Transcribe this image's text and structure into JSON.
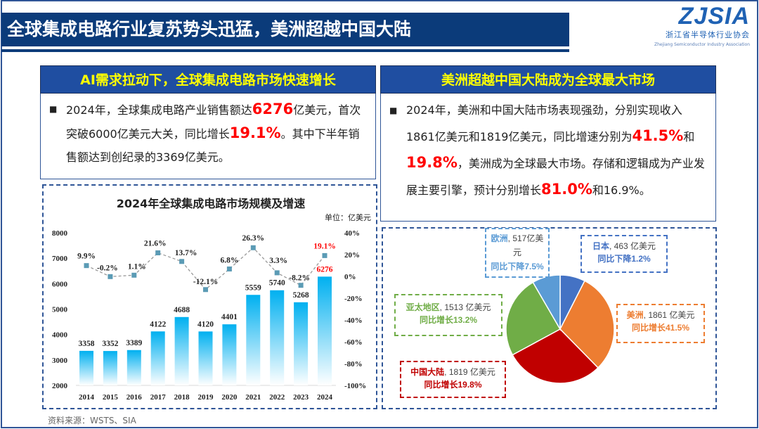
{
  "title": "全球集成电路行业复苏势头迅猛，美洲超越中国大陆",
  "logo": {
    "text": "ZJSIA",
    "cn": "浙江省半导体行业协会",
    "en": "Zhejiang Semiconductor Industry Association"
  },
  "left": {
    "header": "AI需求拉动下，全球集成电路市场快速增长",
    "text": [
      "2024年，全球集成电路产业销售额达",
      "6276",
      "亿美元，首次突破6000亿美元大关，同比增长",
      "19.1%",
      "。其中下半年销售额达到创纪录的3369亿美元。"
    ]
  },
  "right": {
    "header": "美洲超越中国大陆成为全球最大市场",
    "text": [
      "2024年，美洲和中国大陆市场表现强劲，分别实现收入1861亿美元和1819亿美元，同比增速分别为",
      "41.5%",
      "和",
      "19.8%",
      "，美洲成为全球最大市场。存储和逻辑成为产业发展主要引擎，预计分别增长",
      "81.0%",
      "和16.9%。"
    ]
  },
  "source": "资料来源：WSTS、SIA",
  "chart_data": [
    {
      "type": "bar",
      "title": "2024年全球集成电路市场规模及增速",
      "unit": "单位：亿美元",
      "categories": [
        "2014",
        "2015",
        "2016",
        "2017",
        "2018",
        "2019",
        "2020",
        "2021",
        "2022",
        "2023",
        "2024"
      ],
      "series": [
        {
          "type": "bar",
          "axis": "left",
          "values": [
            3358,
            3352,
            3389,
            4122,
            4688,
            4120,
            4401,
            5559,
            5740,
            5268,
            6276
          ],
          "color": "#00b0f0"
        },
        {
          "type": "line",
          "axis": "right",
          "values": [
            9.9,
            -0.2,
            1.1,
            21.6,
            13.7,
            -12.1,
            6.8,
            26.3,
            3.3,
            -8.2,
            19.1
          ],
          "labels": [
            "9.9%",
            "-0.2%",
            "1.1%",
            "21.6%",
            "13.7%",
            "-12.1%",
            "6.8%",
            "26.3%",
            "3.3%",
            "-8.2%",
            "19.1%"
          ],
          "color": "#5b9bb5",
          "style": "dashed"
        }
      ],
      "ylim_left": [
        2000,
        8000
      ],
      "yticks_left": [
        "2000",
        "3000",
        "4000",
        "5000",
        "6000",
        "7000",
        "8000"
      ],
      "ylim_right": [
        -100,
        40
      ],
      "yticks_right": [
        "-100%",
        "-80%",
        "-60%",
        "-40%",
        "-20%",
        "0%",
        "20%",
        "40%"
      ],
      "highlight_color": "#ff0000",
      "grid": false
    },
    {
      "type": "pie",
      "slices": [
        {
          "name": "日本",
          "value": 463,
          "unit": "亿美元",
          "change": "同比下降1.2%",
          "color": "#4472c4"
        },
        {
          "name": "美洲",
          "value": 1861,
          "unit": "亿美元",
          "change": "同比增长41.5%",
          "color": "#ed7d31"
        },
        {
          "name": "中国大陆",
          "value": 1819,
          "unit": "亿美元",
          "change": "同比增长19.8%",
          "color": "#c00000"
        },
        {
          "name": "亚太地区",
          "value": 1513,
          "unit": "亿美元",
          "change": "同比增长13.2%",
          "color": "#70ad47"
        },
        {
          "name": "欧洲",
          "value": 517,
          "unit": "亿美元",
          "change": "同比下降7.5%",
          "color": "#5b9bd5"
        }
      ]
    }
  ]
}
